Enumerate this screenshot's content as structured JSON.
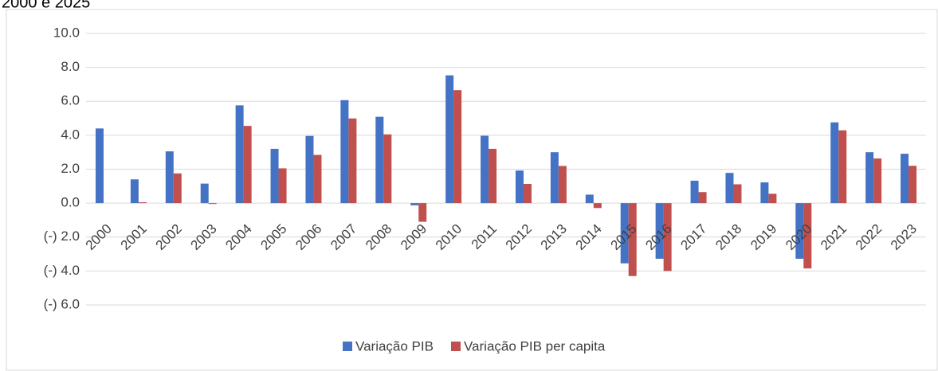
{
  "chart_data": {
    "type": "bar",
    "title": "2000 e 2025",
    "categories": [
      "2000",
      "2001",
      "2002",
      "2003",
      "2004",
      "2005",
      "2006",
      "2007",
      "2008",
      "2009",
      "2010",
      "2011",
      "2012",
      "2013",
      "2014",
      "2015",
      "2016",
      "2017",
      "2018",
      "2019",
      "2020",
      "2021",
      "2022",
      "2023"
    ],
    "series": [
      {
        "name": "Variação PIB",
        "color": "#4472c4",
        "values": [
          4.4,
          1.4,
          3.05,
          1.15,
          5.76,
          3.2,
          3.96,
          6.07,
          5.09,
          -0.13,
          7.53,
          3.97,
          1.92,
          3.0,
          0.5,
          -3.55,
          -3.28,
          1.32,
          1.78,
          1.22,
          -3.28,
          4.76,
          3.0,
          2.91
        ]
      },
      {
        "name": "Variação PIB per capita",
        "color": "#c0504d",
        "values": [
          null,
          0.05,
          1.75,
          -0.05,
          4.55,
          2.05,
          2.84,
          4.99,
          4.05,
          -1.1,
          6.66,
          3.2,
          1.13,
          2.19,
          -0.29,
          -4.3,
          -4.0,
          0.65,
          1.11,
          0.55,
          -3.85,
          4.29,
          2.63,
          2.2
        ]
      }
    ],
    "ylim": [
      -6,
      10
    ],
    "yticks": [
      {
        "value": -6,
        "label": "(-) 6.0"
      },
      {
        "value": -4,
        "label": "(-) 4.0"
      },
      {
        "value": -2,
        "label": "(-) 2.0"
      },
      {
        "value": 0,
        "label": "0.0"
      },
      {
        "value": 2,
        "label": "2.0"
      },
      {
        "value": 4,
        "label": "4.0"
      },
      {
        "value": 6,
        "label": "6.0"
      },
      {
        "value": 8,
        "label": "8.0"
      },
      {
        "value": 10,
        "label": "10.0"
      }
    ],
    "grid": true,
    "legend": "bottom"
  }
}
